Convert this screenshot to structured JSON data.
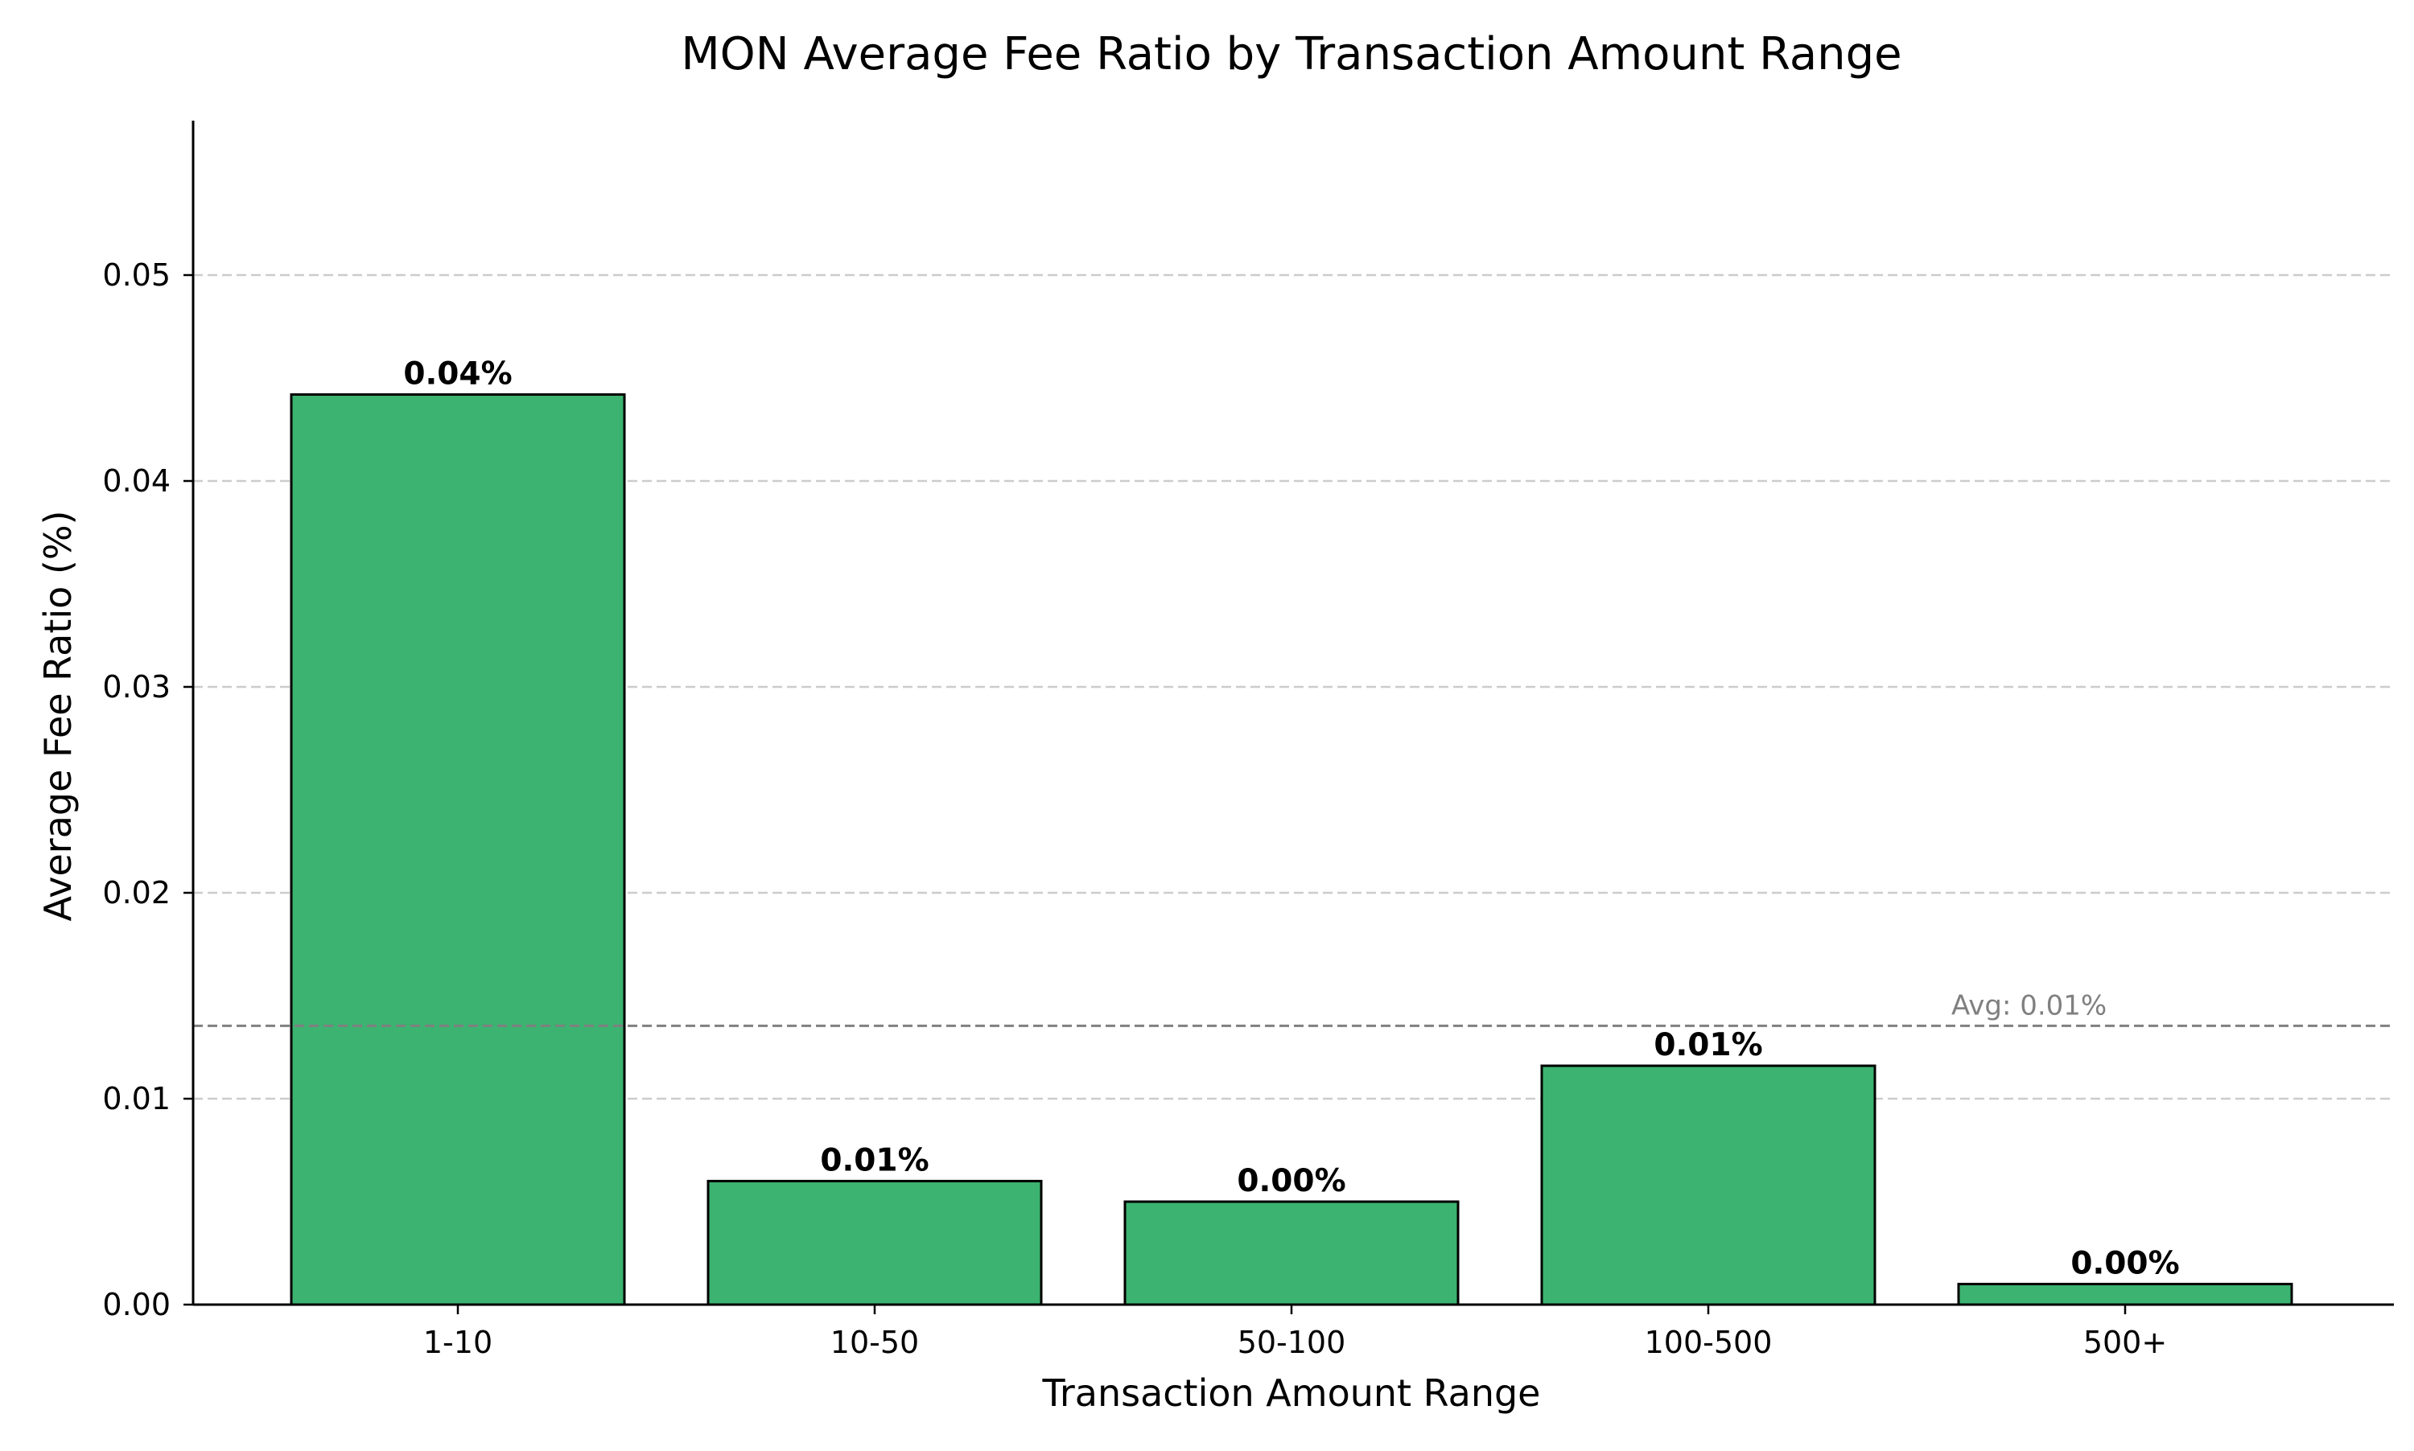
{
  "chart_data": {
    "type": "bar",
    "title": "MON Average Fee Ratio by Transaction Amount Range",
    "xlabel": "Transaction Amount Range",
    "ylabel": "Average Fee Ratio (%)",
    "categories": [
      "1-10",
      "10-50",
      "50-100",
      "100-500",
      "500+"
    ],
    "values": [
      0.0442,
      0.006,
      0.005,
      0.0116,
      0.001
    ],
    "data_labels": [
      "0.04%",
      "0.01%",
      "0.00%",
      "0.01%",
      "0.00%"
    ],
    "ylim": [
      0,
      0.0575
    ],
    "yticks": [
      0.0,
      0.01,
      0.02,
      0.03,
      0.04,
      0.05
    ],
    "ytick_labels": [
      "0.00",
      "0.01",
      "0.02",
      "0.03",
      "0.04",
      "0.05"
    ],
    "grid": "y-dashed",
    "reference_line": {
      "value": 0.01354,
      "label": "Avg: 0.01%",
      "color": "#808080",
      "style": "dashed"
    },
    "colors": {
      "bar": "#3cb371",
      "bar_edge": "#000000",
      "grid": "#cccccc"
    }
  }
}
